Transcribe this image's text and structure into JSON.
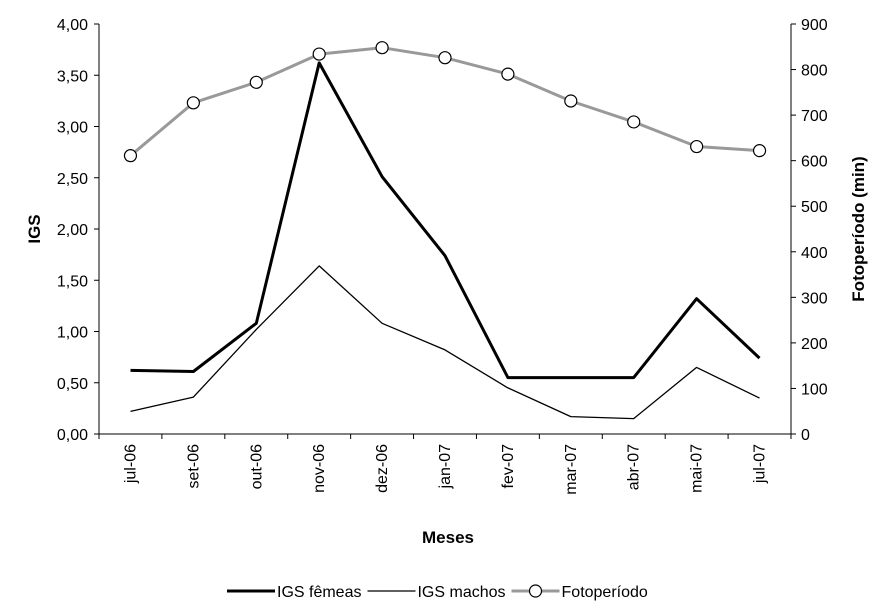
{
  "chart_data": {
    "type": "line",
    "categories": [
      "jul-06",
      "set-06",
      "out-06",
      "nov-06",
      "dez-06",
      "jan-07",
      "fev-07",
      "mar-07",
      "abr-07",
      "mai-07",
      "jul-07"
    ],
    "xlabel": "Meses",
    "ylabel_left": "IGS",
    "ylabel_right": "Fotoperíodo (min)",
    "ylim_left": [
      0,
      4
    ],
    "ylim_right": [
      0,
      900
    ],
    "yticks_left": [
      "0,00",
      "0,50",
      "1,00",
      "1,50",
      "2,00",
      "2,50",
      "3,00",
      "3,50",
      "4,00"
    ],
    "yticks_right": [
      "0",
      "100",
      "200",
      "300",
      "400",
      "500",
      "600",
      "700",
      "800",
      "900"
    ],
    "grid": false,
    "legend_position": "bottom",
    "series": [
      {
        "name": "IGS fêmeas",
        "axis": "left",
        "color": "#000000",
        "style": "thick-line",
        "values": [
          0.62,
          0.61,
          1.08,
          3.62,
          2.51,
          1.74,
          0.55,
          0.55,
          0.55,
          1.32,
          0.74
        ]
      },
      {
        "name": "IGS machos",
        "axis": "left",
        "color": "#000000",
        "style": "thin-line",
        "values": [
          0.22,
          0.36,
          1.02,
          1.64,
          1.08,
          0.82,
          0.45,
          0.17,
          0.15,
          0.65,
          0.35
        ]
      },
      {
        "name": "Fotoperíodo",
        "axis": "right",
        "color": "#999999",
        "style": "line-circle-markers",
        "values": [
          611,
          727,
          772,
          834,
          848,
          826,
          790,
          731,
          685,
          631,
          622
        ]
      }
    ]
  }
}
